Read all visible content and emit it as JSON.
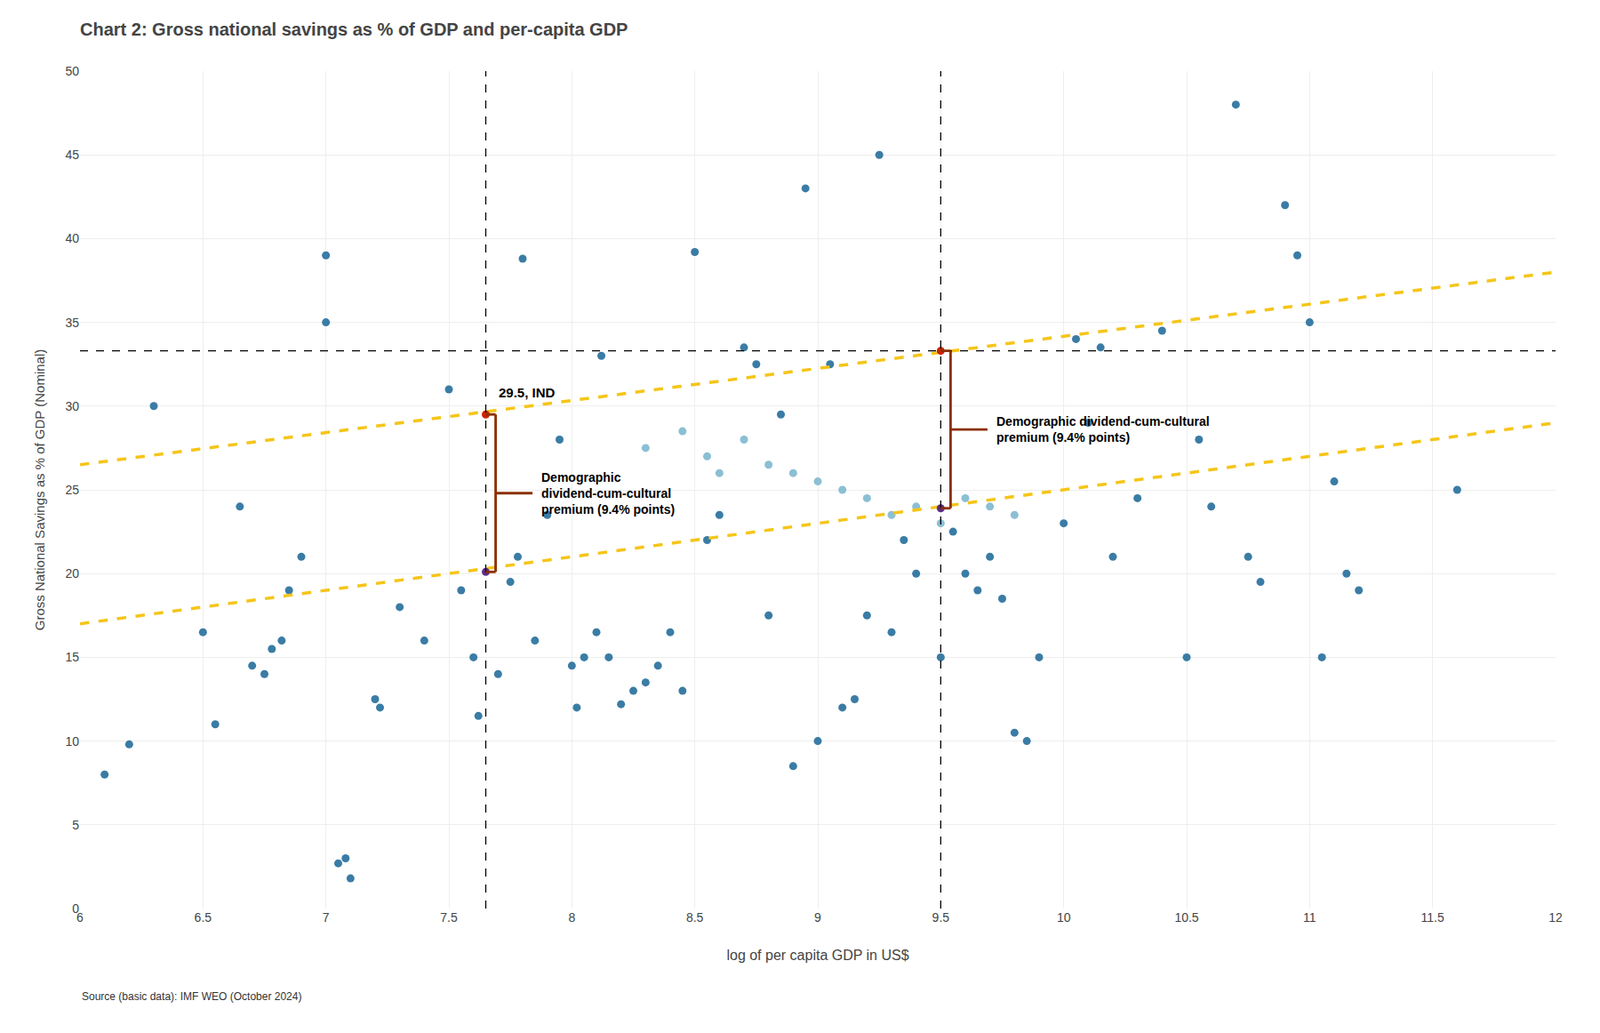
{
  "chart_data": {
    "type": "scatter",
    "title": "Chart 2: Gross national savings as % of GDP and per-capita GDP",
    "x_label": "log of per capita GDP in US$",
    "y_label": "Gross National Savings as % of GDP (Nominal)",
    "source": "Source (basic data): IMF WEO (October 2024)",
    "xlim": [
      6.0,
      12.0
    ],
    "ylim": [
      0,
      50
    ],
    "xticks": [
      6,
      6.5,
      7,
      7.5,
      8,
      8.5,
      9,
      9.5,
      10,
      10.5,
      11,
      11.5,
      12
    ],
    "yticks": [
      0,
      5,
      10,
      15,
      20,
      25,
      30,
      35,
      40,
      45,
      50
    ],
    "grid": true,
    "series": [
      {
        "type": "scatter",
        "marker": "circle",
        "color": "#3a7ca5",
        "x": [
          6.1,
          6.2,
          6.3,
          6.5,
          6.55,
          6.65,
          6.7,
          6.75,
          6.78,
          6.82,
          6.85,
          6.9,
          7.0,
          7.0,
          7.05,
          7.08,
          7.1,
          7.2,
          7.22,
          7.3,
          7.4,
          7.5,
          7.55,
          7.6,
          7.62,
          7.7,
          7.75,
          7.78,
          7.8,
          7.85,
          7.9,
          7.95,
          8.0,
          8.02,
          8.05,
          8.1,
          8.12,
          8.15,
          8.2,
          8.25,
          8.3,
          8.35,
          8.4,
          8.45,
          8.5,
          8.55,
          8.6,
          8.7,
          8.75,
          8.8,
          8.85,
          8.9,
          8.95,
          9.0,
          9.05,
          9.1,
          9.15,
          9.2,
          9.25,
          9.3,
          9.35,
          9.4,
          9.5,
          9.55,
          9.6,
          9.65,
          9.7,
          9.75,
          9.8,
          9.85,
          9.9,
          10.0,
          10.05,
          10.1,
          10.15,
          10.2,
          10.3,
          10.4,
          10.5,
          10.55,
          10.6,
          10.7,
          10.75,
          10.8,
          10.9,
          10.95,
          11.0,
          11.05,
          11.1,
          11.15,
          11.2,
          11.6
        ],
        "values": [
          8.0,
          9.8,
          30.0,
          16.5,
          11.0,
          24.0,
          14.5,
          14.0,
          15.5,
          16.0,
          19.0,
          21.0,
          39.0,
          35.0,
          2.7,
          3.0,
          1.8,
          12.5,
          12.0,
          18.0,
          16.0,
          31.0,
          19.0,
          15.0,
          11.5,
          14.0,
          19.5,
          21.0,
          38.8,
          16.0,
          23.5,
          28.0,
          14.5,
          12.0,
          15.0,
          16.5,
          33.0,
          15.0,
          12.2,
          13.0,
          13.5,
          14.5,
          16.5,
          13.0,
          39.2,
          22.0,
          23.5,
          33.5,
          32.5,
          17.5,
          29.5,
          8.5,
          43.0,
          10.0,
          32.5,
          12.0,
          12.5,
          17.5,
          45.0,
          16.5,
          22.0,
          20.0,
          15.0,
          22.5,
          20.0,
          19.0,
          21.0,
          18.5,
          10.5,
          10.0,
          15.0,
          23.0,
          34.0,
          29.0,
          33.5,
          21.0,
          24.5,
          34.5,
          15.0,
          28.0,
          24.0,
          48.0,
          21.0,
          19.5,
          42.0,
          39.0,
          35.0,
          15.0,
          25.5,
          20.0,
          19.0,
          25.0
        ]
      },
      {
        "type": "scatter",
        "marker": "circle",
        "color": "#8bbfd4",
        "x": [
          8.3,
          8.45,
          8.55,
          8.6,
          8.7,
          8.8,
          8.9,
          9.0,
          9.1,
          9.2,
          9.3,
          9.4,
          9.5,
          9.6,
          9.7,
          9.8
        ],
        "values": [
          27.5,
          28.5,
          27.0,
          26.0,
          28.0,
          26.5,
          26.0,
          25.5,
          25.0,
          24.5,
          23.5,
          24.0,
          23.0,
          24.5,
          24.0,
          23.5
        ]
      },
      {
        "type": "line",
        "line_style": "dash",
        "color": "#f5c518",
        "x": [
          6.0,
          12.0
        ],
        "values": [
          26.5,
          38.0
        ]
      },
      {
        "type": "line",
        "line_style": "dash",
        "color": "#f5c518",
        "x": [
          6.0,
          12.0
        ],
        "values": [
          17.0,
          29.0
        ]
      },
      {
        "type": "scatter",
        "marker": "circle",
        "color": "#cc2200",
        "x": [
          7.65,
          9.5
        ],
        "values": [
          29.5,
          33.3
        ]
      },
      {
        "type": "scatter",
        "marker": "circle",
        "color": "#5c2d87",
        "x": [
          7.65,
          9.5
        ],
        "values": [
          20.1,
          23.9
        ]
      }
    ],
    "hlines": [
      {
        "value": 33.3,
        "color": "#000000",
        "line_style": "dash"
      }
    ],
    "vlines": [
      {
        "value": 7.65,
        "color": "#000000",
        "line_style": "dash"
      },
      {
        "value": 9.5,
        "color": "#000000",
        "line_style": "dash"
      }
    ],
    "brackets": [
      {
        "x": 7.65,
        "from": 29.5,
        "to": 20.1,
        "color": "#8B3000",
        "text": "Demographic\ndividend-cum-cultural\npremium (9.4% points)"
      },
      {
        "x": 9.5,
        "from": 33.3,
        "to": 23.9,
        "color": "#8B3000",
        "text": "Demographic dividend-cum-cultural\npremium (9.4% points)"
      }
    ],
    "annotations": [
      {
        "text": "29.5, IND",
        "x": 7.65,
        "y": 29.5
      }
    ]
  }
}
